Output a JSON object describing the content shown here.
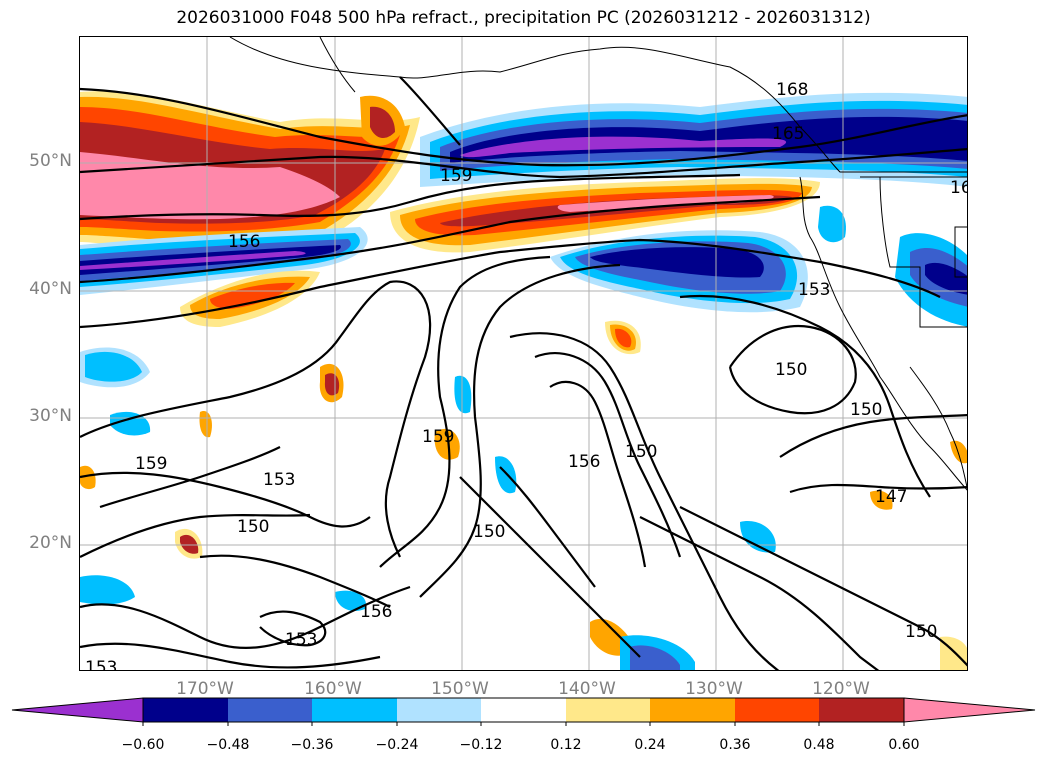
{
  "title": "2026031000 F048 500 hPa refract., precipitation PC (2026031212 - 2026031312)",
  "lat_labels": [
    "50°N",
    "40°N",
    "30°N",
    "20°N"
  ],
  "lon_labels": [
    "170°W",
    "160°W",
    "150°W",
    "140°W",
    "130°W",
    "120°W"
  ],
  "contour_labels": [
    "168",
    "165",
    "16",
    "159",
    "156",
    "153",
    "150",
    "150",
    "159",
    "153",
    "150",
    "159",
    "156",
    "150",
    "156",
    "153",
    "153",
    "150",
    "147",
    "150"
  ],
  "colorbar": {
    "ticks": [
      "−0.60",
      "−0.48",
      "−0.36",
      "−0.24",
      "−0.12",
      "0.12",
      "0.24",
      "0.36",
      "0.48",
      "0.60"
    ],
    "colors": [
      "#9b30d0",
      "#00008b",
      "#3a5fcd",
      "#00bfff",
      "#b0e2ff",
      "#ffffff",
      "#ffe88a",
      "#ffa500",
      "#ff4500",
      "#b22222",
      "#ff88aa",
      "#ff88aa"
    ]
  },
  "colors": {
    "purple": "#9b30d0",
    "navy": "#00008b",
    "royal_blue": "#3a5fcd",
    "sky": "#00bfff",
    "light_blue": "#b0e2ff",
    "yellow": "#ffe88a",
    "orange": "#ffa500",
    "red_orange": "#ff4500",
    "firebrick": "#b22222",
    "pink": "#ff88aa"
  }
}
